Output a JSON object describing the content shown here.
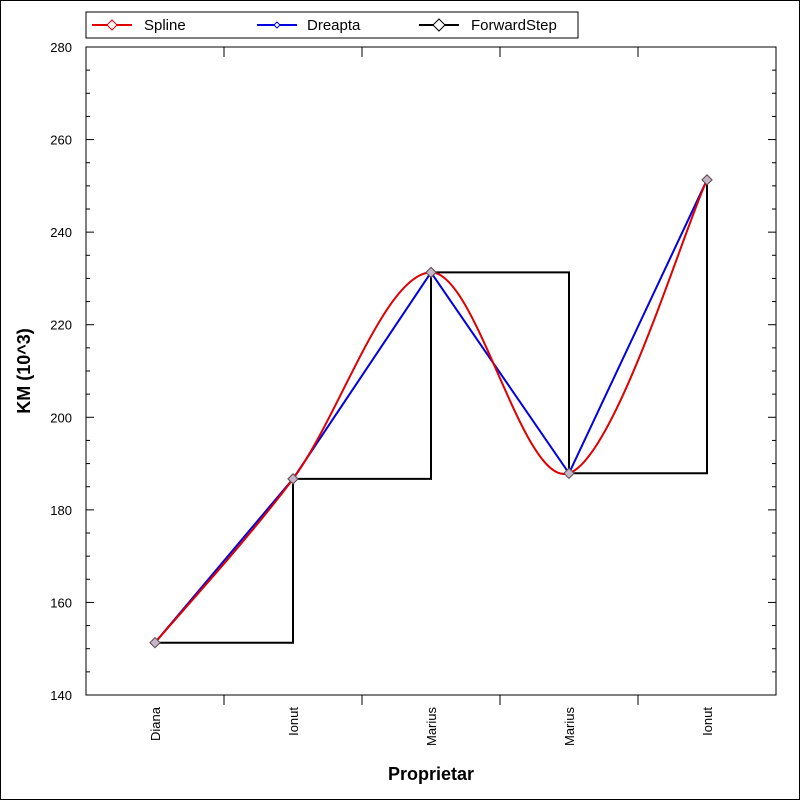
{
  "chart_data": {
    "type": "line",
    "categories": [
      "Diana",
      "Ionut",
      "Marius",
      "Marius",
      "Ionut"
    ],
    "series": [
      {
        "name": "Spline",
        "values": [
          151.3,
          186.7,
          231.3,
          187.9,
          251.3
        ],
        "color": "#e00000",
        "style": "spline",
        "marker": "diamond"
      },
      {
        "name": "Dreapta",
        "values": [
          151.3,
          186.7,
          231.3,
          187.9,
          251.3
        ],
        "color": "#0000e0",
        "style": "straight",
        "marker": "small-diamond"
      },
      {
        "name": "ForwardStep",
        "values": [
          151.3,
          186.7,
          231.3,
          187.9,
          251.3
        ],
        "color": "#000000",
        "style": "step-forward",
        "marker": "diamond"
      }
    ],
    "xlabel": "Proprietar",
    "ylabel": "KM (10^3)",
    "ylim": [
      140,
      280
    ],
    "yticks": [
      140,
      160,
      180,
      200,
      220,
      240,
      260,
      280
    ],
    "legend_position": "top",
    "grid": false
  }
}
